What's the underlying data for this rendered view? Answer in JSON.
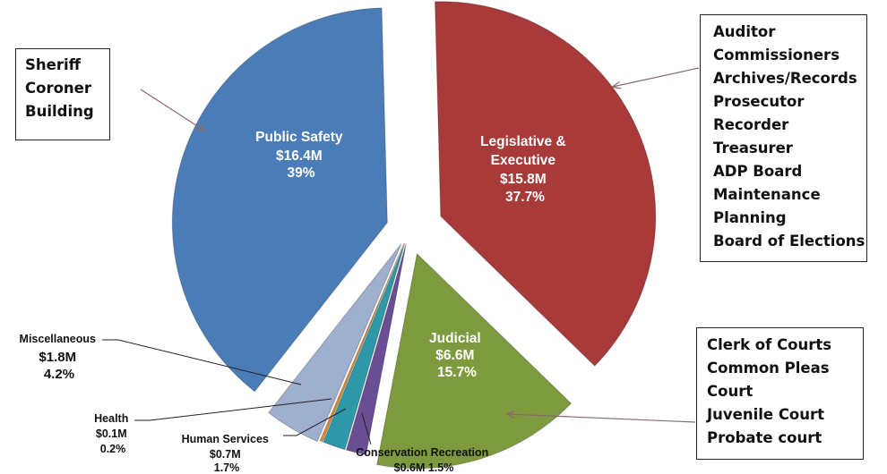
{
  "chart_data": {
    "type": "pie",
    "exploded": true,
    "slices": [
      {
        "key": "leg",
        "label": "Legislative &\nExecutive",
        "amount": "$15.8M",
        "percent_text": "37.7%",
        "value": 37.7,
        "color": "#a83a3a"
      },
      {
        "key": "jud",
        "label": "Judicial",
        "amount": "$6.6M",
        "percent_text": "15.7%",
        "value": 15.7,
        "color": "#7d9a3e"
      },
      {
        "key": "cons",
        "label": "Conservation Recreation",
        "amount": "$0.6M",
        "percent_text": "1.5%",
        "value": 1.5,
        "color": "#6a4e94"
      },
      {
        "key": "hum",
        "label": "Human Services",
        "amount": "$0.7M",
        "percent_text": "1.7%",
        "value": 1.7,
        "color": "#2f98a8"
      },
      {
        "key": "hea",
        "label": "Health",
        "amount": "$0.1M",
        "percent_text": "0.2%",
        "value": 0.2,
        "color": "#e28a2c"
      },
      {
        "key": "misc",
        "label": "Miscellaneous",
        "amount": "$1.8M",
        "percent_text": "4.2%",
        "value": 4.2,
        "color": "#9fb0cf"
      },
      {
        "key": "ps",
        "label": "Public Safety",
        "amount": "$16.4M",
        "percent_text": "39%",
        "value": 39,
        "color": "#4a7db8"
      }
    ]
  },
  "callouts": {
    "public_safety": [
      "Sheriff",
      "Coroner",
      "Building"
    ],
    "legislative": [
      "Auditor",
      "Commissioners",
      "Archives/Records",
      "Prosecutor",
      "Recorder",
      "Treasurer",
      "ADP Board",
      "Maintenance",
      "Planning",
      "Board of Elections"
    ],
    "judicial": [
      "Clerk of Courts",
      "Common Pleas",
      "Court",
      "Juvenile Court",
      "Probate court"
    ]
  }
}
